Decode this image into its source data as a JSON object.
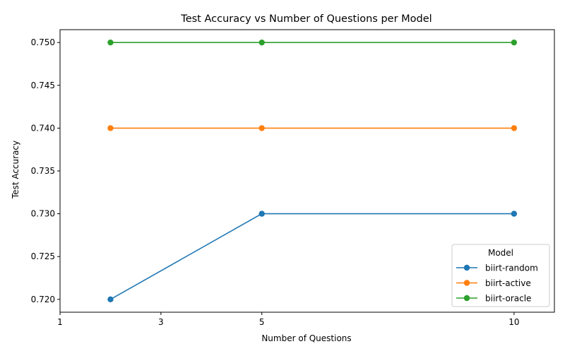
{
  "chart_data": {
    "type": "line",
    "title": "Test Accuracy vs Number of Questions per Model",
    "xlabel": "Number of Questions",
    "ylabel": "Test Accuracy",
    "x": [
      2,
      5,
      10
    ],
    "xticks": [
      1,
      3,
      5,
      10
    ],
    "xtick_labels": [
      "1",
      "3",
      "5",
      "10"
    ],
    "yticks": [
      0.72,
      0.725,
      0.73,
      0.735,
      0.74,
      0.745,
      0.75
    ],
    "ytick_labels": [
      "0.720",
      "0.725",
      "0.730",
      "0.735",
      "0.740",
      "0.745",
      "0.750"
    ],
    "xlim": [
      1,
      10.8
    ],
    "ylim": [
      0.7185,
      0.7515
    ],
    "grid": false,
    "legend": {
      "title": "Model",
      "placement": "lower-right"
    },
    "series": [
      {
        "name": "biirt-random",
        "values": [
          0.72,
          0.73,
          0.73
        ],
        "color": "#1f77b4",
        "marker": "circle"
      },
      {
        "name": "biirt-active",
        "values": [
          0.74,
          0.74,
          0.74
        ],
        "color": "#ff7f0e",
        "marker": "circle"
      },
      {
        "name": "biirt-oracle",
        "values": [
          0.75,
          0.75,
          0.75
        ],
        "color": "#2ca02c",
        "marker": "circle"
      }
    ]
  }
}
